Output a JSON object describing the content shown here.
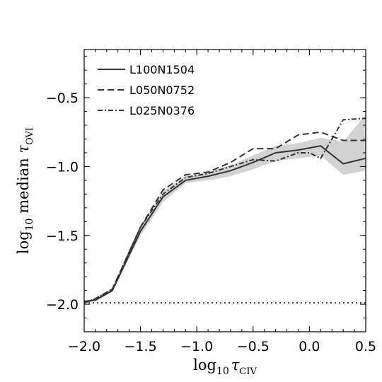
{
  "chart_data": {
    "type": "line",
    "xlabel_parts": {
      "pre": "log",
      "sub1": "10",
      "sym": "τ",
      "sub2": "CIV"
    },
    "ylabel_parts": {
      "pre": "log",
      "sub1": "10",
      "mid": " median ",
      "sym": "τ",
      "sub2": "OVI"
    },
    "xlim": [
      -2.0,
      0.5
    ],
    "ylim": [
      -2.2,
      -0.15
    ],
    "xticks": [
      -2.0,
      -1.5,
      -1.0,
      -0.5,
      0.0,
      0.5
    ],
    "xtick_labels": [
      "−2.0",
      "−1.5",
      "−1.0",
      "−0.5",
      "0.0",
      "0.5"
    ],
    "yticks": [
      -2.0,
      -1.5,
      -1.0,
      -0.5
    ],
    "ytick_labels": [
      "−2.0",
      "−1.5",
      "−1.0",
      "−0.5"
    ],
    "legend_position": "top-left",
    "series": [
      {
        "name": "L100N1504",
        "style": "solid",
        "color": "#333333",
        "x": [
          -2.0,
          -1.9,
          -1.75,
          -1.5,
          -1.3,
          -1.1,
          -0.9,
          -0.7,
          -0.5,
          -0.3,
          -0.1,
          0.1,
          0.3,
          0.5
        ],
        "y": [
          -1.98,
          -1.97,
          -1.9,
          -1.47,
          -1.22,
          -1.1,
          -1.07,
          -1.03,
          -0.97,
          -0.9,
          -0.88,
          -0.85,
          -0.98,
          -0.94
        ]
      },
      {
        "name": "L050N0752",
        "style": "dashed",
        "color": "#333333",
        "x": [
          -2.0,
          -1.9,
          -1.75,
          -1.5,
          -1.3,
          -1.1,
          -0.9,
          -0.7,
          -0.5,
          -0.3,
          -0.1,
          0.1,
          0.3,
          0.5
        ],
        "y": [
          -1.99,
          -1.96,
          -1.89,
          -1.44,
          -1.17,
          -1.06,
          -1.04,
          -0.97,
          -0.87,
          -0.87,
          -0.77,
          -0.75,
          -0.81,
          -0.81
        ]
      },
      {
        "name": "L025N0376",
        "style": "dashdot",
        "color": "#333333",
        "x": [
          -2.0,
          -1.9,
          -1.75,
          -1.5,
          -1.3,
          -1.1,
          -0.9,
          -0.7,
          -0.5,
          -0.3,
          -0.1,
          0.0,
          0.1,
          0.3,
          0.5
        ],
        "y": [
          -1.99,
          -1.96,
          -1.89,
          -1.44,
          -1.2,
          -1.08,
          -1.05,
          -1.0,
          -0.95,
          -0.96,
          -0.9,
          -0.9,
          -0.94,
          -0.66,
          -0.65
        ]
      }
    ],
    "shaded_band": {
      "color": "#d3d3d3",
      "x": [
        -2.0,
        -1.9,
        -1.75,
        -1.5,
        -1.3,
        -1.1,
        -0.9,
        -0.7,
        -0.5,
        -0.3,
        -0.1,
        0.1,
        0.3,
        0.5
      ],
      "lower": [
        -1.99,
        -1.98,
        -1.91,
        -1.5,
        -1.26,
        -1.12,
        -1.1,
        -1.07,
        -1.02,
        -0.96,
        -0.94,
        -0.92,
        -1.06,
        -1.03
      ],
      "upper": [
        -1.97,
        -1.96,
        -1.88,
        -1.44,
        -1.18,
        -1.07,
        -1.04,
        -0.99,
        -0.92,
        -0.85,
        -0.83,
        -0.79,
        -0.82,
        -0.62
      ]
    },
    "reference_line": {
      "style": "dotted",
      "y": -1.99
    }
  }
}
